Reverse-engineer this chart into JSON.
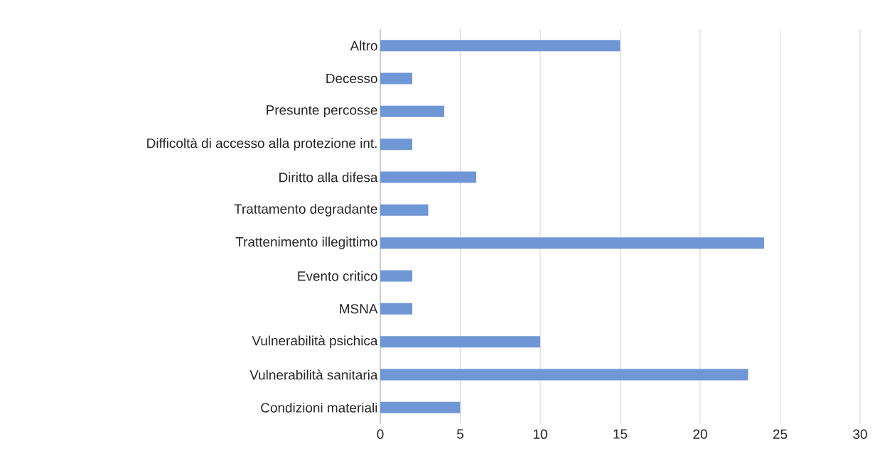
{
  "chart_data": {
    "type": "bar",
    "orientation": "horizontal",
    "categories": [
      "Altro",
      "Decesso",
      "Presunte percosse",
      "Difficoltà di accesso alla protezione int.",
      "Diritto alla difesa",
      "Trattamento degradante",
      "Trattenimento illegittimo",
      "Evento critico",
      "MSNA",
      "Vulnerabilità psichica",
      "Vulnerabilità sanitaria",
      "Condizioni materiali"
    ],
    "values": [
      15,
      2,
      4,
      2,
      6,
      3,
      24,
      2,
      2,
      10,
      23,
      5
    ],
    "color": "#6f97d6",
    "xlim": [
      0,
      30
    ],
    "xticks": [
      0,
      5,
      10,
      15,
      20,
      25,
      30
    ],
    "grid": "x"
  }
}
